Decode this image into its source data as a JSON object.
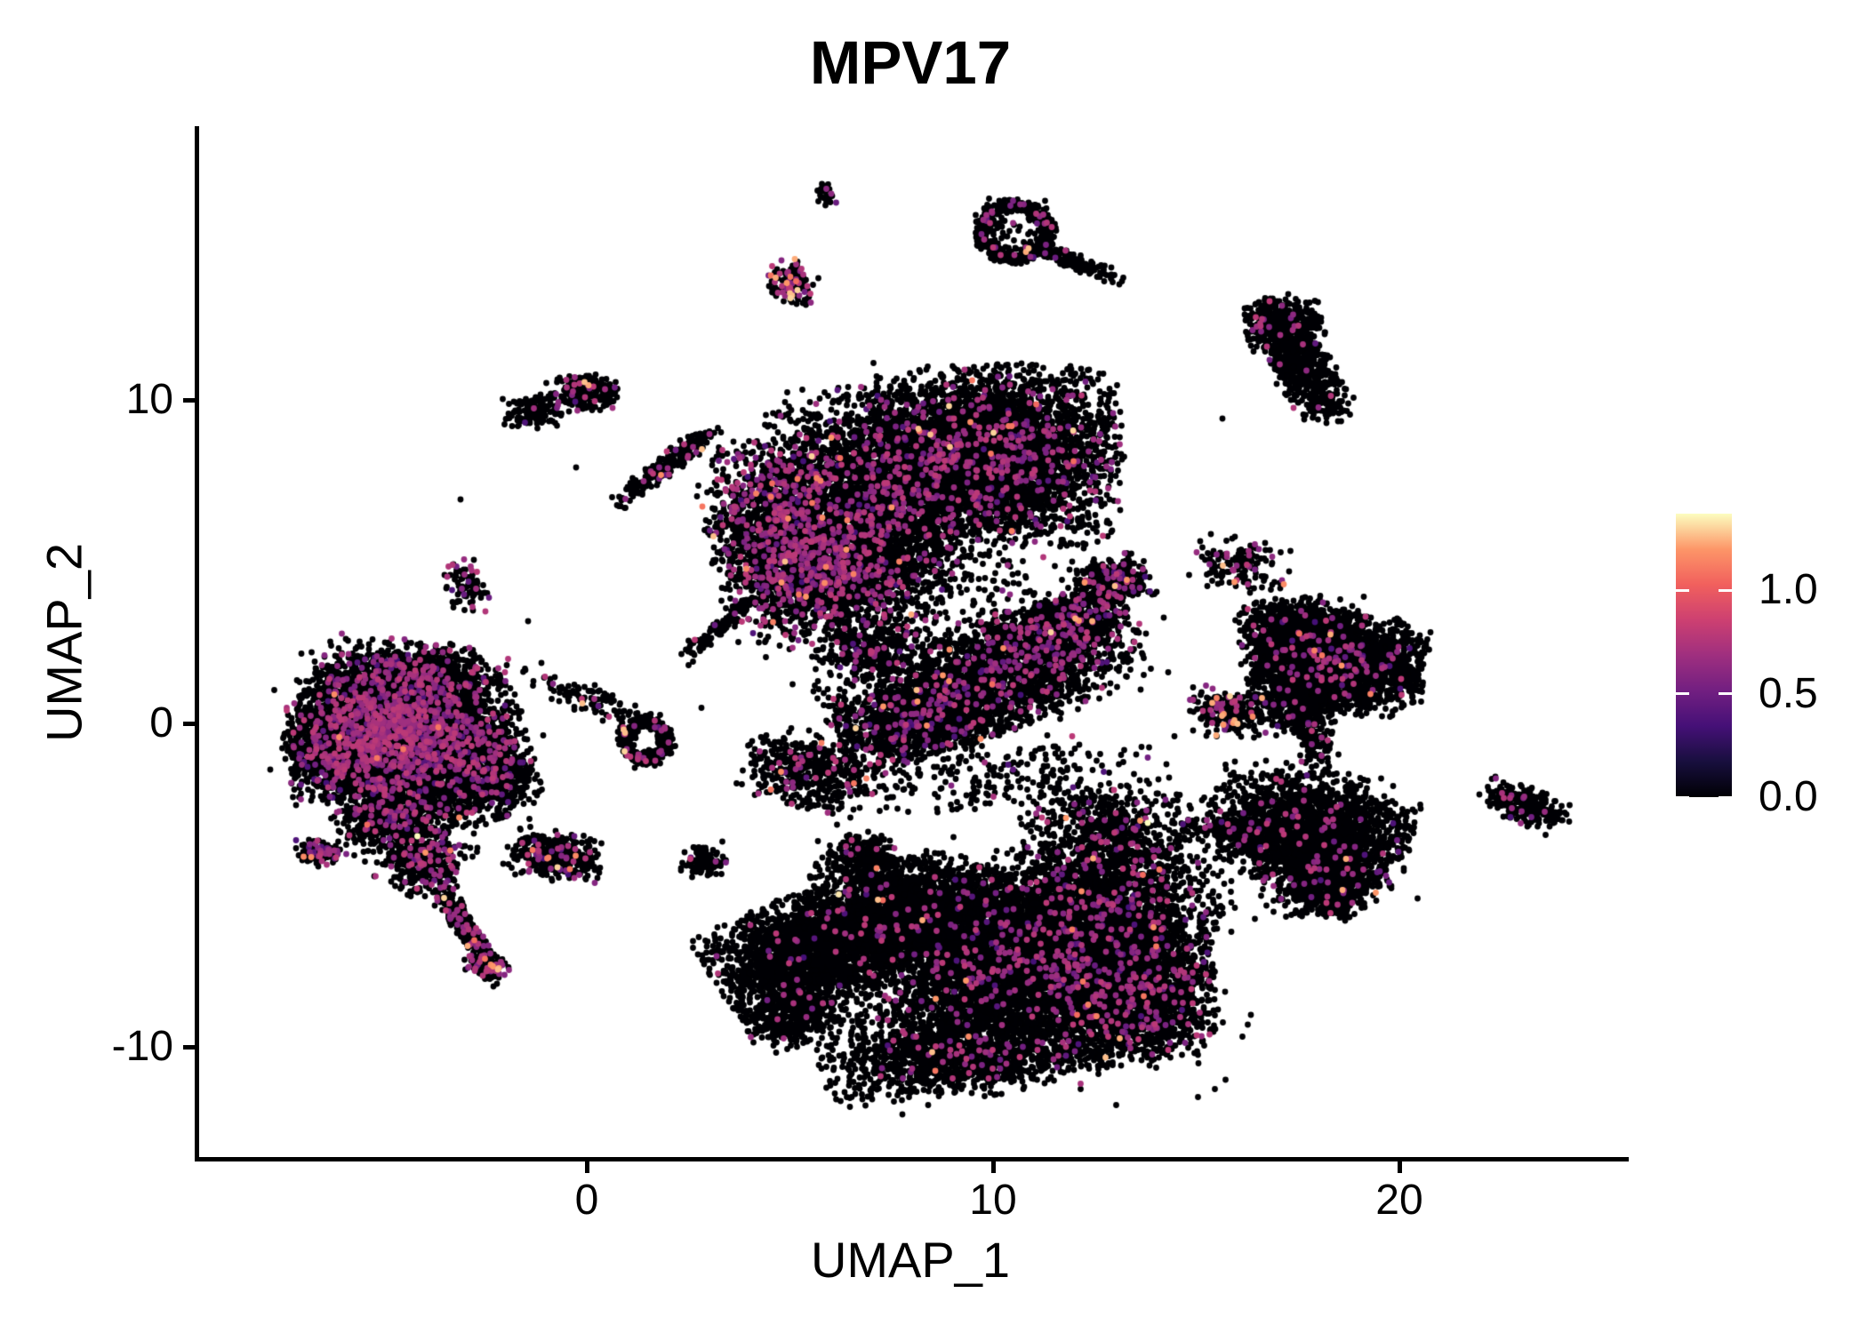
{
  "chart_data": {
    "type": "scatter",
    "title": "MPV17",
    "xlabel": "UMAP_1",
    "ylabel": "UMAP_2",
    "x_ticks": [
      0,
      10,
      20
    ],
    "y_ticks": [
      -10,
      0,
      10
    ],
    "xlim": [
      -9.6,
      25.6
    ],
    "ylim": [
      -13.5,
      18.4
    ],
    "grid": false,
    "legend": {
      "position": "right",
      "colormap": "magma",
      "max_value": 1.37,
      "ticks": [
        {
          "label": "1.0",
          "value": 1.0
        },
        {
          "label": "0.5",
          "value": 0.5
        },
        {
          "label": "0.0",
          "value": 0.0
        }
      ],
      "stops": [
        "#000004",
        "#180F3E",
        "#451077",
        "#721F81",
        "#9F2F7F",
        "#CD4071",
        "#F1605D",
        "#FD9668",
        "#FCFDBF"
      ]
    },
    "point_radius_px": 3.4,
    "n_points_approx": 52000,
    "clusters_format": "[shape g=gaussian r=ring, n, cx, cy, sx|rx, sy|ry, rot_deg|ring_width, frac_expressing, frac_high]",
    "clusters": [
      [
        "g",
        2800,
        -4.9,
        0.1,
        1.1,
        0.78,
        -12,
        0.12,
        0.0015
      ],
      [
        "g",
        2300,
        -5.5,
        -0.8,
        0.92,
        0.72,
        8,
        0.12,
        0.0015
      ],
      [
        "g",
        1800,
        -3.6,
        -0.5,
        0.92,
        0.88,
        0,
        0.12,
        0.0015
      ],
      [
        "g",
        950,
        -4.2,
        1.5,
        1.1,
        0.5,
        -6,
        0.13,
        0.0015
      ],
      [
        "g",
        850,
        -2.5,
        -1.4,
        0.6,
        0.82,
        10,
        0.1,
        0.001
      ],
      [
        "g",
        950,
        -4.6,
        -2.7,
        0.82,
        0.58,
        18,
        0.12,
        0.002
      ],
      [
        "g",
        450,
        -4.0,
        -4.3,
        0.5,
        0.5,
        -30,
        0.14,
        0.003
      ],
      [
        "g",
        300,
        -3.0,
        -6.25,
        0.62,
        0.14,
        -63,
        0.14,
        0.004
      ],
      [
        "g",
        170,
        -2.45,
        -7.5,
        0.28,
        0.2,
        -40,
        0.3,
        0.03
      ],
      [
        "g",
        110,
        -6.6,
        -4.0,
        0.28,
        0.2,
        0,
        0.3,
        0.04
      ],
      [
        "g",
        400,
        -0.75,
        -4.1,
        0.58,
        0.36,
        -12,
        0.13,
        0.015
      ],
      [
        "g",
        60,
        -4.7,
        -0.2,
        1.8,
        1.3,
        -10,
        0.06,
        0.0
      ],
      [
        "r",
        420,
        1.45,
        -0.55,
        0.5,
        0.6,
        0.18,
        0.06,
        0.012
      ],
      [
        "g",
        110,
        0.1,
        0.75,
        0.9,
        0.24,
        -25,
        0.05,
        0.004
      ],
      [
        "g",
        90,
        -2.95,
        4.25,
        0.25,
        0.42,
        15,
        0.18,
        0.0
      ],
      [
        "g",
        140,
        -1.3,
        9.65,
        0.36,
        0.26,
        0,
        0.04,
        0.0
      ],
      [
        "g",
        190,
        -0.05,
        10.2,
        0.42,
        0.28,
        8,
        0.12,
        0.006
      ],
      [
        "g",
        240,
        1.95,
        7.95,
        0.82,
        0.16,
        45,
        0.06,
        0.006
      ],
      [
        "g",
        26,
        5.9,
        16.35,
        0.12,
        0.18,
        0,
        0.08,
        0.0
      ],
      [
        "g",
        150,
        5.05,
        13.6,
        0.3,
        0.36,
        -15,
        0.28,
        0.07
      ],
      [
        "r",
        480,
        10.55,
        15.2,
        0.78,
        0.82,
        0.13,
        0.05,
        0.004
      ],
      [
        "g",
        50,
        10.5,
        15.2,
        0.48,
        0.48,
        0,
        0.05,
        0.0
      ],
      [
        "g",
        150,
        11.95,
        14.3,
        0.68,
        0.12,
        -27,
        0.03,
        0.0
      ],
      [
        "g",
        4600,
        10.0,
        8.3,
        1.5,
        1.32,
        0,
        0.08,
        0.003
      ],
      [
        "g",
        2600,
        7.1,
        7.3,
        1.28,
        1.45,
        0,
        0.1,
        0.004
      ],
      [
        "g",
        2000,
        4.9,
        5.7,
        0.9,
        1.5,
        10,
        0.2,
        0.006
      ],
      [
        "g",
        1150,
        6.4,
        4.7,
        1.12,
        0.82,
        0,
        0.12,
        0.004
      ],
      [
        "g",
        520,
        7.9,
        4.2,
        2.2,
        1.1,
        -8,
        0.08,
        0.003
      ],
      [
        "g",
        360,
        7.0,
        2.3,
        0.65,
        0.48,
        -12,
        0.12,
        0.008
      ],
      [
        "g",
        110,
        3.4,
        3.1,
        0.78,
        0.14,
        48,
        0.05,
        0.0
      ],
      [
        "g",
        2800,
        9.8,
        1.3,
        1.9,
        0.78,
        24,
        0.08,
        0.003
      ],
      [
        "g",
        900,
        11.7,
        2.9,
        0.82,
        0.48,
        28,
        0.09,
        0.003
      ],
      [
        "g",
        430,
        12.95,
        4.4,
        0.43,
        0.34,
        20,
        0.12,
        0.006
      ],
      [
        "g",
        650,
        8.0,
        0.0,
        0.92,
        0.53,
        18,
        0.08,
        0.003
      ],
      [
        "g",
        160,
        9.6,
        2.0,
        2.4,
        1.45,
        20,
        0.05,
        0.002
      ],
      [
        "g",
        440,
        5.4,
        -1.5,
        0.78,
        0.53,
        -22,
        0.1,
        0.02
      ],
      [
        "g",
        230,
        6.8,
        -4.1,
        0.4,
        0.35,
        0,
        0.05,
        0.003
      ],
      [
        "g",
        110,
        2.9,
        -4.3,
        0.28,
        0.24,
        0,
        0.08,
        0.01
      ],
      [
        "g",
        4800,
        10.3,
        -7.6,
        1.85,
        1.45,
        -5,
        0.05,
        0.0015
      ],
      [
        "g",
        2600,
        12.7,
        -6.1,
        1.3,
        1.12,
        -18,
        0.06,
        0.002
      ],
      [
        "g",
        2200,
        13.4,
        -8.4,
        1.0,
        0.98,
        8,
        0.07,
        0.003
      ],
      [
        "g",
        2500,
        5.6,
        -6.9,
        1.25,
        0.8,
        28,
        0.018,
        0.0008
      ],
      [
        "g",
        1700,
        8.3,
        -5.6,
        1.38,
        0.78,
        -12,
        0.035,
        0.0015
      ],
      [
        "g",
        1300,
        9.0,
        -10.3,
        1.55,
        0.63,
        6,
        0.04,
        0.0015
      ],
      [
        "g",
        450,
        5.2,
        -8.9,
        0.68,
        0.48,
        25,
        0.025,
        0.001
      ],
      [
        "g",
        260,
        10.0,
        -7.6,
        3.0,
        2.1,
        0,
        0.04,
        0.001
      ],
      [
        "g",
        800,
        12.9,
        -3.5,
        1.12,
        0.78,
        -12,
        0.06,
        0.006
      ],
      [
        "g",
        190,
        15.9,
        -3.3,
        0.58,
        0.15,
        -6,
        0.05,
        0.004
      ],
      [
        "g",
        320,
        9.7,
        -1.6,
        2.2,
        0.6,
        0,
        0.05,
        0.003
      ],
      [
        "g",
        2700,
        18.5,
        1.9,
        1.02,
        0.73,
        -7,
        0.03,
        0.0015
      ],
      [
        "g",
        900,
        17.6,
        2.7,
        0.78,
        0.58,
        0,
        0.04,
        0.003
      ],
      [
        "g",
        360,
        17.3,
        0.8,
        0.48,
        0.5,
        15,
        0.03,
        0.001
      ],
      [
        "g",
        160,
        17.9,
        -0.5,
        0.25,
        0.53,
        8,
        0.04,
        0.004
      ],
      [
        "g",
        230,
        15.8,
        0.3,
        0.48,
        0.38,
        -10,
        0.18,
        0.04
      ],
      [
        "g",
        160,
        16.1,
        4.9,
        0.58,
        0.4,
        -12,
        0.12,
        0.01
      ],
      [
        "g",
        2000,
        17.8,
        -3.2,
        1.2,
        0.85,
        -12,
        0.025,
        0.001
      ],
      [
        "g",
        850,
        18.1,
        -4.6,
        0.78,
        0.58,
        8,
        0.03,
        0.002
      ],
      [
        "g",
        230,
        18.35,
        -5.5,
        0.36,
        0.28,
        0,
        0.04,
        0.003
      ],
      [
        "g",
        700,
        17.5,
        11.2,
        1.0,
        0.38,
        -63,
        0.03,
        0.001
      ],
      [
        "g",
        380,
        17.15,
        12.3,
        0.48,
        0.4,
        0,
        0.04,
        0.003
      ],
      [
        "g",
        280,
        23.1,
        -2.55,
        0.58,
        0.28,
        -25,
        0.03,
        0.001
      ],
      [
        "g",
        25,
        8.5,
        0.5,
        6.3,
        4.4,
        0,
        0.04,
        0.0
      ]
    ]
  }
}
